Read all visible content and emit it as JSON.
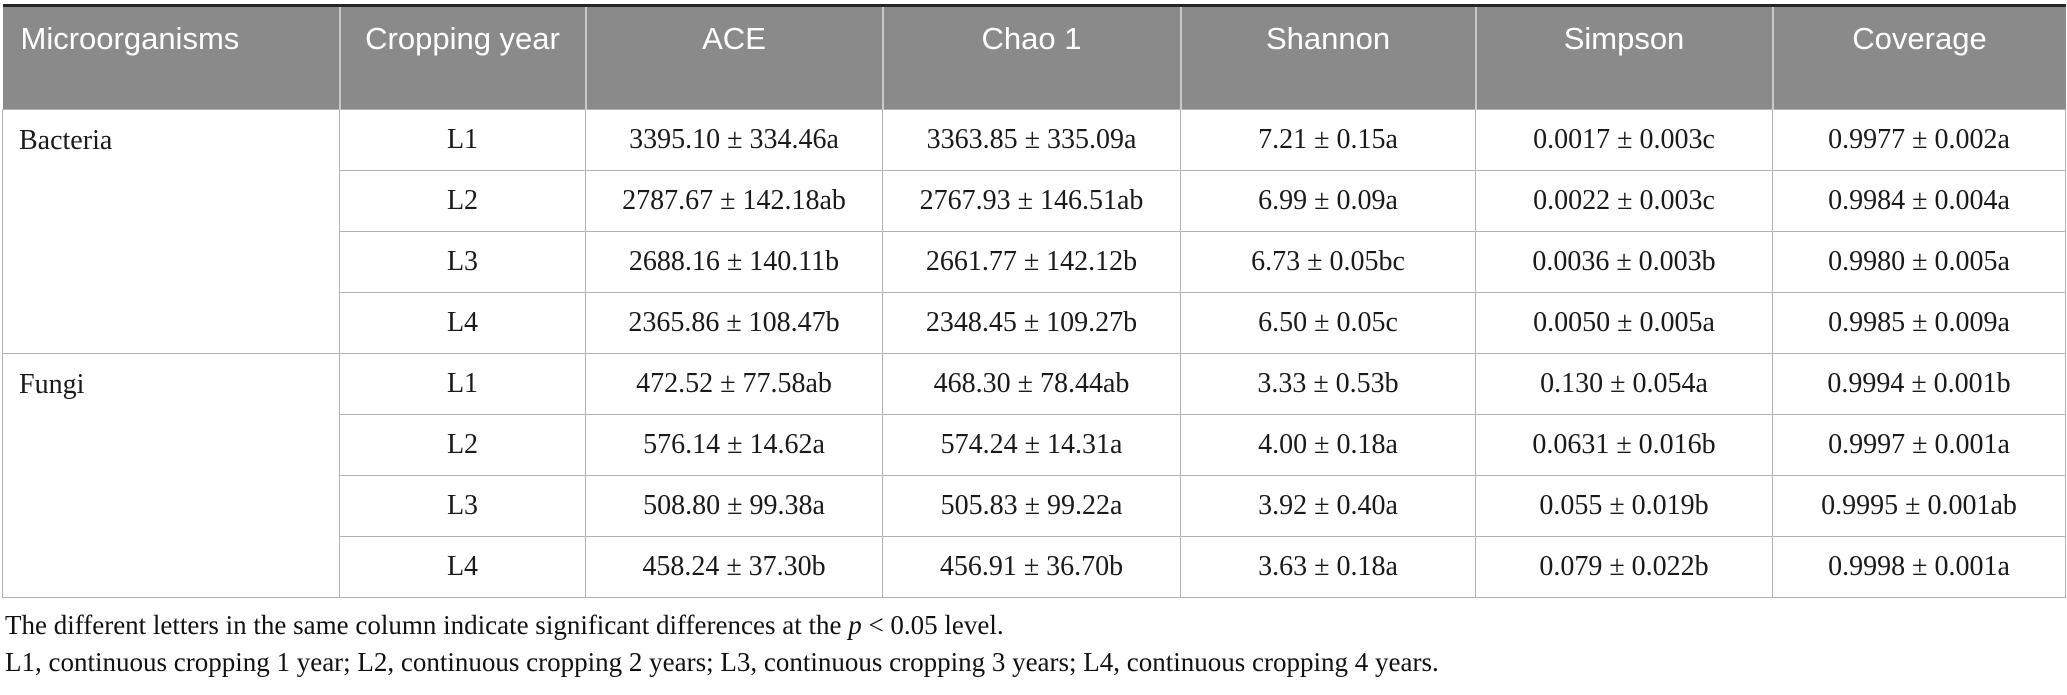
{
  "table": {
    "columns": [
      {
        "label": "Microorganisms",
        "slug": "microorganisms"
      },
      {
        "label": "Cropping year",
        "slug": "cropping-year"
      },
      {
        "label": "ACE",
        "slug": "ace"
      },
      {
        "label": "Chao 1",
        "slug": "chao-1"
      },
      {
        "label": "Shannon",
        "slug": "shannon"
      },
      {
        "label": "Simpson",
        "slug": "simpson"
      },
      {
        "label": "Coverage",
        "slug": "coverage"
      }
    ],
    "sections": [
      {
        "name": "Bacteria",
        "rows": [
          {
            "year": "L1",
            "ace": "3395.10 ± 334.46a",
            "chao1": "3363.85 ± 335.09a",
            "shannon": "7.21 ± 0.15a",
            "simpson": "0.0017 ± 0.003c",
            "coverage": "0.9977 ± 0.002a"
          },
          {
            "year": "L2",
            "ace": "2787.67 ± 142.18ab",
            "chao1": "2767.93 ± 146.51ab",
            "shannon": "6.99 ± 0.09a",
            "simpson": "0.0022 ± 0.003c",
            "coverage": "0.9984 ± 0.004a"
          },
          {
            "year": "L3",
            "ace": "2688.16 ± 140.11b",
            "chao1": "2661.77 ± 142.12b",
            "shannon": "6.73 ± 0.05bc",
            "simpson": "0.0036 ± 0.003b",
            "coverage": "0.9980 ± 0.005a"
          },
          {
            "year": "L4",
            "ace": "2365.86 ± 108.47b",
            "chao1": "2348.45 ± 109.27b",
            "shannon": "6.50 ± 0.05c",
            "simpson": "0.0050 ± 0.005a",
            "coverage": "0.9985 ± 0.009a"
          }
        ]
      },
      {
        "name": "Fungi",
        "rows": [
          {
            "year": "L1",
            "ace": "472.52 ± 77.58ab",
            "chao1": "468.30 ± 78.44ab",
            "shannon": "3.33 ± 0.53b",
            "simpson": "0.130 ± 0.054a",
            "coverage": "0.9994 ± 0.001b"
          },
          {
            "year": "L2",
            "ace": "576.14 ± 14.62a",
            "chao1": "574.24 ± 14.31a",
            "shannon": "4.00 ± 0.18a",
            "simpson": "0.0631 ± 0.016b",
            "coverage": "0.9997 ± 0.001a"
          },
          {
            "year": "L3",
            "ace": "508.80 ± 99.38a",
            "chao1": "505.83 ± 99.22a",
            "shannon": "3.92 ± 0.40a",
            "simpson": "0.055 ± 0.019b",
            "coverage": "0.9995 ± 0.001ab"
          },
          {
            "year": "L4",
            "ace": "458.24 ± 37.30b",
            "chao1": "456.91 ± 36.70b",
            "shannon": "3.63 ± 0.18a",
            "simpson": "0.079 ± 0.022b",
            "coverage": "0.9998 ± 0.001a"
          }
        ]
      }
    ]
  },
  "footnotes": {
    "line1_prefix": "The different letters in the same column indicate significant differences at the ",
    "line1_italic": "p",
    "line1_suffix": " < 0.05 level.",
    "line2": "L1, continuous cropping 1 year; L2, continuous cropping 2 years; L3, continuous cropping 3 years; L4, continuous cropping 4 years."
  },
  "colors": {
    "header_bg": "#8a8a8a",
    "header_text": "#ffffff",
    "grid_border": "#b3b3b3",
    "top_rule": "#262626",
    "body_text": "#1a1a1a"
  }
}
